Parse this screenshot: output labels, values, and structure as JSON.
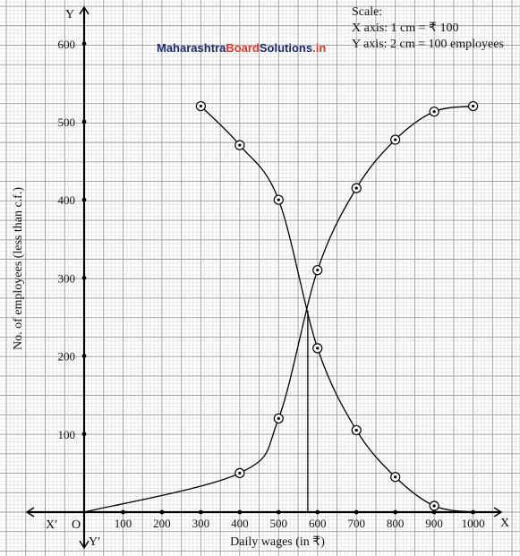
{
  "chart_data": {
    "type": "line",
    "xlabel": "Daily wages (in ₹)",
    "ylabel": "No. of employees (less than c.f.)",
    "xlim": [
      0,
      1000
    ],
    "ylim": [
      0,
      600
    ],
    "x_ticks": [
      100,
      200,
      300,
      400,
      500,
      600,
      700,
      800,
      900,
      1000
    ],
    "y_ticks": [
      100,
      200,
      300,
      400,
      500,
      600
    ],
    "grid": true,
    "axis_labels": {
      "x_pos": "X",
      "x_neg": "X′",
      "y_pos": "Y",
      "y_neg": "Y′",
      "origin": "O"
    },
    "scale_note": {
      "title": "Scale:",
      "x": "X axis: 1 cm = ₹ 100",
      "y": "Y axis: 2 cm = 100 employees"
    },
    "brand": {
      "part1": "Maharashtra",
      "part2": "Board",
      "part3": "Solutions",
      "part4": ".in",
      "color_dark": "#1a2a6c",
      "color_accent": "#e0392b"
    },
    "series": [
      {
        "x": [
          0,
          400,
          500,
          600,
          700,
          800,
          900,
          1000
        ],
        "y": [
          0,
          50,
          120,
          310,
          415,
          477,
          513,
          520
        ],
        "markers": [
          false,
          true,
          true,
          true,
          true,
          true,
          true,
          true
        ]
      },
      {
        "x": [
          300,
          400,
          500,
          600,
          700,
          800,
          900,
          1000
        ],
        "y": [
          520,
          470,
          400,
          210,
          105,
          45,
          8,
          0
        ],
        "markers": [
          true,
          true,
          true,
          true,
          true,
          true,
          true,
          false
        ]
      }
    ],
    "intersection": {
      "x": 575,
      "y": 258
    }
  }
}
